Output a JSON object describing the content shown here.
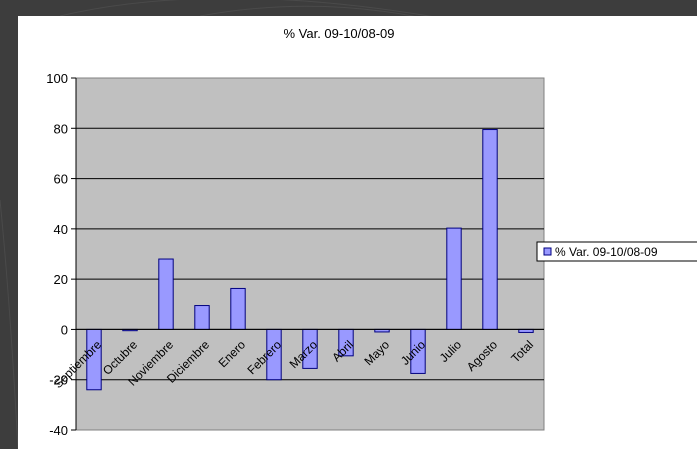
{
  "chart_data": {
    "type": "bar",
    "title": "% Var. 09-10/08-09",
    "categories": [
      "Septiembre",
      "Octubre",
      "Noviembre",
      "Diciembre",
      "Enero",
      "Febrero",
      "Marzo",
      "Abril",
      "Mayo",
      "Junio",
      "Julio",
      "Agosto",
      "Total"
    ],
    "series": [
      {
        "name": "% Var. 09-10/08-09",
        "values": [
          -24,
          -0.5,
          28,
          9.5,
          16.3,
          -20,
          -15.5,
          -10.5,
          -1,
          -17.5,
          40.3,
          79.5,
          -1.2
        ]
      }
    ],
    "ylim": [
      -40,
      100
    ],
    "yticks": [
      100,
      80,
      60,
      40,
      20,
      0,
      -20,
      -40
    ],
    "grid": true,
    "legend": "right",
    "colors": {
      "bar": "#9999ff",
      "bar_border": "#000080",
      "plot_bg": "#c0c0c0",
      "background": "#3d3d3d"
    }
  }
}
